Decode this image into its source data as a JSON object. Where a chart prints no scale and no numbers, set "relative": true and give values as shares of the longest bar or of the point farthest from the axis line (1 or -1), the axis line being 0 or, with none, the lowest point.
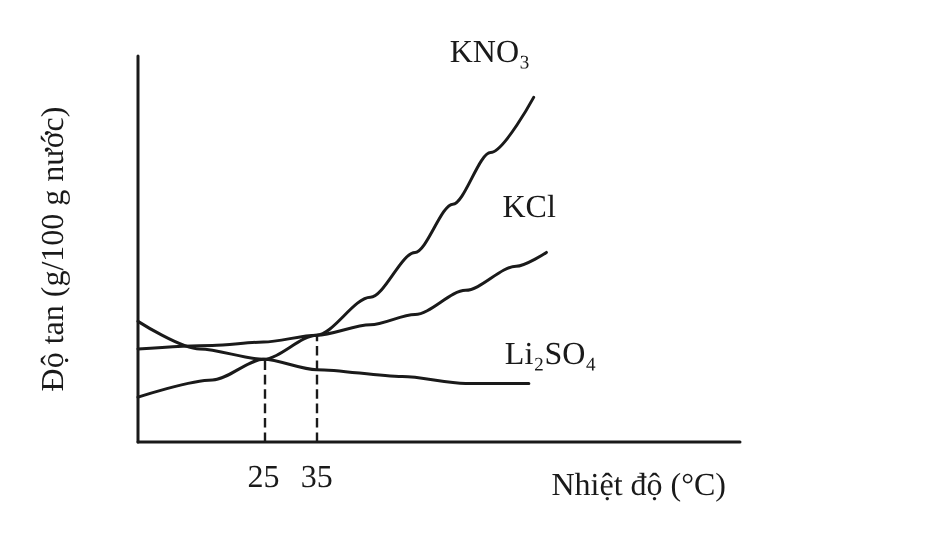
{
  "chart_data": {
    "type": "line",
    "xlabel": "Nhiệt độ (°C)",
    "ylabel": "Độ tan (g/100 g nước)",
    "relative": true,
    "xlim": [
      1.4,
      114.6
    ],
    "xticks": [
      25,
      35
    ],
    "tick_labels": "x",
    "grid": false,
    "legend": false,
    "marker": "none",
    "line_style": "solid",
    "series": [
      {
        "name": "KNO₃",
        "color": "#1a1a1a",
        "x": [
          1.4,
          15.4,
          25,
          35,
          45.1,
          53.5,
          60.6,
          67.7,
          75.8
        ],
        "values": [
          0.13,
          0.18,
          0.24,
          0.31,
          0.42,
          0.55,
          0.69,
          0.84,
          1
        ]
      },
      {
        "name": "KCl",
        "color": "#1a1a1a",
        "x": [
          1.4,
          15.4,
          25,
          35,
          45.1,
          53.5,
          63,
          72.5,
          78.2
        ],
        "values": [
          0.27,
          0.28,
          0.29,
          0.31,
          0.34,
          0.37,
          0.44,
          0.51,
          0.55
        ]
      },
      {
        "name": "Li₂SO₄",
        "color": "#1a1a1a",
        "x": [
          1.4,
          13,
          25,
          35,
          51.1,
          63,
          74.9
        ],
        "values": [
          0.35,
          0.27,
          0.24,
          0.21,
          0.19,
          0.17,
          0.17
        ]
      }
    ],
    "ref_lines": [
      {
        "axis": "x",
        "value": 25,
        "line_style": "dashed"
      },
      {
        "axis": "x",
        "value": 35,
        "line_style": "dashed"
      }
    ]
  }
}
